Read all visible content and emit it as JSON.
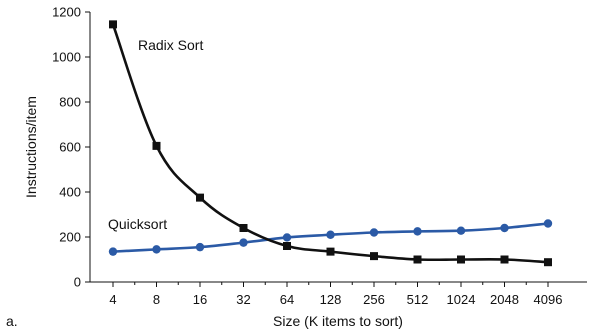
{
  "chart_data": {
    "type": "line",
    "panel_label": "a.",
    "xlabel": "Size (K items to sort)",
    "ylabel": "Instructions/item",
    "categories": [
      "4",
      "8",
      "16",
      "32",
      "64",
      "128",
      "256",
      "512",
      "1024",
      "2048",
      "4096"
    ],
    "ylim": [
      0,
      1200
    ],
    "yticks": [
      0,
      200,
      400,
      600,
      800,
      1000,
      1200
    ],
    "grid": false,
    "legend": "none",
    "series": [
      {
        "name": "Radix Sort",
        "color": "#111111",
        "marker": "square",
        "values": [
          1145,
          605,
          375,
          240,
          160,
          135,
          115,
          100,
          100,
          100,
          88
        ]
      },
      {
        "name": "Quicksort",
        "color": "#2b5aa6",
        "marker": "circle",
        "values": [
          135,
          145,
          155,
          175,
          198,
          210,
          220,
          225,
          228,
          240,
          260
        ]
      }
    ]
  }
}
